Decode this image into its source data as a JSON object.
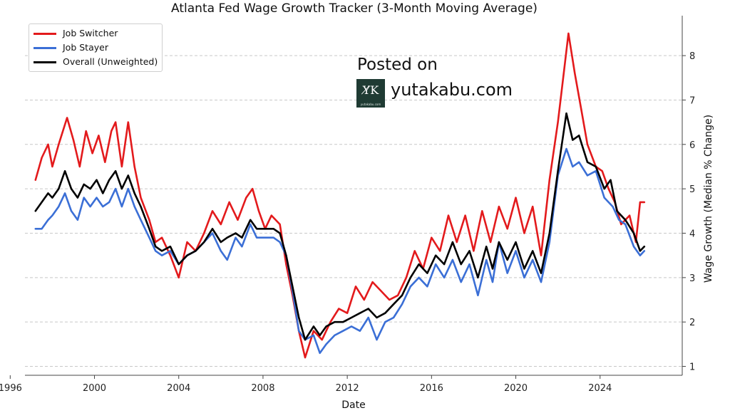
{
  "watermark": {
    "line1": "Posted on",
    "line2": "yutakabu.com",
    "logo_mark": "Y̸K",
    "logo_small": "yutakabu.com"
  },
  "colors": {
    "job_switcher": "#e31a1c",
    "job_stayer": "#3b6fd6",
    "overall": "#000000",
    "grid": "#c8c8c8"
  },
  "chart_data": {
    "type": "line",
    "title": "Atlanta Fed Wage Growth Tracker (3-Month Moving Average)",
    "xlabel": "Date",
    "ylabel": "Wage Growth (Median % Change)",
    "y_axis_side": "right",
    "xlim": [
      1996.7,
      2027.9
    ],
    "ylim": [
      0.8,
      8.9
    ],
    "x_ticks": [
      1996,
      2000,
      2004,
      2008,
      2012,
      2016,
      2020,
      2024
    ],
    "x_tick_labels": [
      "1996",
      "2000",
      "2004",
      "2008",
      "2012",
      "2016",
      "2020",
      "2024"
    ],
    "y_ticks": [
      1,
      2,
      3,
      4,
      5,
      6,
      7,
      8
    ],
    "y_tick_labels": [
      "1",
      "2",
      "3",
      "4",
      "5",
      "6",
      "7",
      "8"
    ],
    "grid": "horizontal dashed",
    "legend_position": "top-left",
    "series": [
      {
        "name": "Job Switcher",
        "color": "#e31a1c",
        "points": [
          [
            1997.2,
            5.2
          ],
          [
            1997.5,
            5.7
          ],
          [
            1997.8,
            6.0
          ],
          [
            1998.0,
            5.5
          ],
          [
            1998.3,
            6.0
          ],
          [
            1998.7,
            6.6
          ],
          [
            1999.0,
            6.1
          ],
          [
            1999.3,
            5.5
          ],
          [
            1999.6,
            6.3
          ],
          [
            1999.9,
            5.8
          ],
          [
            2000.2,
            6.2
          ],
          [
            2000.5,
            5.6
          ],
          [
            2000.8,
            6.3
          ],
          [
            2001.0,
            6.5
          ],
          [
            2001.3,
            5.5
          ],
          [
            2001.6,
            6.5
          ],
          [
            2001.9,
            5.5
          ],
          [
            2002.2,
            4.8
          ],
          [
            2002.6,
            4.3
          ],
          [
            2002.9,
            3.8
          ],
          [
            2003.2,
            3.9
          ],
          [
            2003.6,
            3.5
          ],
          [
            2004.0,
            3.0
          ],
          [
            2004.4,
            3.8
          ],
          [
            2004.8,
            3.6
          ],
          [
            2005.2,
            4.0
          ],
          [
            2005.6,
            4.5
          ],
          [
            2006.0,
            4.2
          ],
          [
            2006.4,
            4.7
          ],
          [
            2006.8,
            4.3
          ],
          [
            2007.2,
            4.8
          ],
          [
            2007.5,
            5.0
          ],
          [
            2007.8,
            4.5
          ],
          [
            2008.1,
            4.1
          ],
          [
            2008.4,
            4.4
          ],
          [
            2008.8,
            4.2
          ],
          [
            2009.1,
            3.3
          ],
          [
            2009.4,
            2.6
          ],
          [
            2009.7,
            1.8
          ],
          [
            2010.0,
            1.2
          ],
          [
            2010.4,
            1.8
          ],
          [
            2010.8,
            1.6
          ],
          [
            2011.2,
            2.0
          ],
          [
            2011.6,
            2.3
          ],
          [
            2012.0,
            2.2
          ],
          [
            2012.4,
            2.8
          ],
          [
            2012.8,
            2.5
          ],
          [
            2013.2,
            2.9
          ],
          [
            2013.6,
            2.7
          ],
          [
            2014.0,
            2.5
          ],
          [
            2014.4,
            2.6
          ],
          [
            2014.8,
            3.0
          ],
          [
            2015.2,
            3.6
          ],
          [
            2015.6,
            3.2
          ],
          [
            2016.0,
            3.9
          ],
          [
            2016.4,
            3.6
          ],
          [
            2016.8,
            4.4
          ],
          [
            2017.2,
            3.8
          ],
          [
            2017.6,
            4.4
          ],
          [
            2018.0,
            3.6
          ],
          [
            2018.4,
            4.5
          ],
          [
            2018.8,
            3.8
          ],
          [
            2019.2,
            4.6
          ],
          [
            2019.6,
            4.1
          ],
          [
            2020.0,
            4.8
          ],
          [
            2020.4,
            4.0
          ],
          [
            2020.8,
            4.6
          ],
          [
            2021.2,
            3.5
          ],
          [
            2021.6,
            5.2
          ],
          [
            2022.0,
            6.5
          ],
          [
            2022.3,
            7.7
          ],
          [
            2022.5,
            8.5
          ],
          [
            2022.8,
            7.6
          ],
          [
            2023.1,
            6.8
          ],
          [
            2023.4,
            6.0
          ],
          [
            2023.8,
            5.5
          ],
          [
            2024.1,
            5.4
          ],
          [
            2024.4,
            5.0
          ],
          [
            2024.7,
            4.7
          ],
          [
            2025.0,
            4.2
          ],
          [
            2025.4,
            4.4
          ],
          [
            2025.7,
            3.8
          ],
          [
            2025.9,
            4.7
          ],
          [
            2026.1,
            4.7
          ]
        ]
      },
      {
        "name": "Job Stayer",
        "color": "#3b6fd6",
        "points": [
          [
            1997.2,
            4.1
          ],
          [
            1997.5,
            4.1
          ],
          [
            1997.8,
            4.3
          ],
          [
            1998.0,
            4.4
          ],
          [
            1998.3,
            4.6
          ],
          [
            1998.6,
            4.9
          ],
          [
            1998.9,
            4.5
          ],
          [
            1999.2,
            4.3
          ],
          [
            1999.5,
            4.8
          ],
          [
            1999.8,
            4.6
          ],
          [
            2000.1,
            4.8
          ],
          [
            2000.4,
            4.6
          ],
          [
            2000.7,
            4.7
          ],
          [
            2001.0,
            5.0
          ],
          [
            2001.3,
            4.6
          ],
          [
            2001.6,
            5.0
          ],
          [
            2001.9,
            4.6
          ],
          [
            2002.2,
            4.3
          ],
          [
            2002.6,
            3.9
          ],
          [
            2002.9,
            3.6
          ],
          [
            2003.2,
            3.5
          ],
          [
            2003.6,
            3.6
          ],
          [
            2004.0,
            3.3
          ],
          [
            2004.4,
            3.5
          ],
          [
            2004.8,
            3.6
          ],
          [
            2005.2,
            3.8
          ],
          [
            2005.6,
            4.0
          ],
          [
            2006.0,
            3.6
          ],
          [
            2006.3,
            3.4
          ],
          [
            2006.7,
            3.9
          ],
          [
            2007.0,
            3.7
          ],
          [
            2007.4,
            4.2
          ],
          [
            2007.7,
            3.9
          ],
          [
            2008.1,
            3.9
          ],
          [
            2008.5,
            3.9
          ],
          [
            2008.8,
            3.8
          ],
          [
            2009.1,
            3.5
          ],
          [
            2009.4,
            2.7
          ],
          [
            2009.7,
            1.8
          ],
          [
            2010.0,
            1.6
          ],
          [
            2010.4,
            1.7
          ],
          [
            2010.7,
            1.3
          ],
          [
            2011.0,
            1.5
          ],
          [
            2011.4,
            1.7
          ],
          [
            2011.8,
            1.8
          ],
          [
            2012.2,
            1.9
          ],
          [
            2012.6,
            1.8
          ],
          [
            2013.0,
            2.1
          ],
          [
            2013.4,
            1.6
          ],
          [
            2013.8,
            2.0
          ],
          [
            2014.2,
            2.1
          ],
          [
            2014.6,
            2.4
          ],
          [
            2015.0,
            2.8
          ],
          [
            2015.4,
            3.0
          ],
          [
            2015.8,
            2.8
          ],
          [
            2016.2,
            3.3
          ],
          [
            2016.6,
            3.0
          ],
          [
            2017.0,
            3.4
          ],
          [
            2017.4,
            2.9
          ],
          [
            2017.8,
            3.3
          ],
          [
            2018.2,
            2.6
          ],
          [
            2018.6,
            3.4
          ],
          [
            2018.9,
            2.9
          ],
          [
            2019.2,
            3.8
          ],
          [
            2019.6,
            3.1
          ],
          [
            2020.0,
            3.6
          ],
          [
            2020.4,
            3.0
          ],
          [
            2020.8,
            3.4
          ],
          [
            2021.2,
            2.9
          ],
          [
            2021.6,
            3.8
          ],
          [
            2022.0,
            5.3
          ],
          [
            2022.4,
            5.9
          ],
          [
            2022.7,
            5.5
          ],
          [
            2023.0,
            5.6
          ],
          [
            2023.4,
            5.3
          ],
          [
            2023.8,
            5.4
          ],
          [
            2024.2,
            4.8
          ],
          [
            2024.6,
            4.6
          ],
          [
            2024.9,
            4.3
          ],
          [
            2025.2,
            4.2
          ],
          [
            2025.6,
            3.7
          ],
          [
            2025.9,
            3.5
          ],
          [
            2026.1,
            3.6
          ]
        ]
      },
      {
        "name": "Overall (Unweighted)",
        "color": "#000000",
        "points": [
          [
            1997.2,
            4.5
          ],
          [
            1997.5,
            4.7
          ],
          [
            1997.8,
            4.9
          ],
          [
            1998.0,
            4.8
          ],
          [
            1998.3,
            5.0
          ],
          [
            1998.6,
            5.4
          ],
          [
            1998.9,
            5.0
          ],
          [
            1999.2,
            4.8
          ],
          [
            1999.5,
            5.1
          ],
          [
            1999.8,
            5.0
          ],
          [
            2000.1,
            5.2
          ],
          [
            2000.4,
            4.9
          ],
          [
            2000.7,
            5.2
          ],
          [
            2001.0,
            5.4
          ],
          [
            2001.3,
            5.0
          ],
          [
            2001.6,
            5.3
          ],
          [
            2001.9,
            4.9
          ],
          [
            2002.2,
            4.6
          ],
          [
            2002.6,
            4.1
          ],
          [
            2002.9,
            3.7
          ],
          [
            2003.2,
            3.6
          ],
          [
            2003.6,
            3.7
          ],
          [
            2004.0,
            3.3
          ],
          [
            2004.4,
            3.5
          ],
          [
            2004.8,
            3.6
          ],
          [
            2005.2,
            3.8
          ],
          [
            2005.6,
            4.1
          ],
          [
            2006.0,
            3.8
          ],
          [
            2006.3,
            3.9
          ],
          [
            2006.7,
            4.0
          ],
          [
            2007.0,
            3.9
          ],
          [
            2007.4,
            4.3
          ],
          [
            2007.7,
            4.1
          ],
          [
            2008.1,
            4.1
          ],
          [
            2008.5,
            4.1
          ],
          [
            2008.8,
            4.0
          ],
          [
            2009.1,
            3.5
          ],
          [
            2009.4,
            2.8
          ],
          [
            2009.7,
            2.1
          ],
          [
            2010.0,
            1.6
          ],
          [
            2010.4,
            1.9
          ],
          [
            2010.7,
            1.7
          ],
          [
            2011.0,
            1.9
          ],
          [
            2011.4,
            2.0
          ],
          [
            2011.8,
            2.0
          ],
          [
            2012.2,
            2.1
          ],
          [
            2012.6,
            2.2
          ],
          [
            2013.0,
            2.3
          ],
          [
            2013.4,
            2.1
          ],
          [
            2013.8,
            2.2
          ],
          [
            2014.2,
            2.4
          ],
          [
            2014.6,
            2.6
          ],
          [
            2015.0,
            3.0
          ],
          [
            2015.4,
            3.3
          ],
          [
            2015.8,
            3.1
          ],
          [
            2016.2,
            3.5
          ],
          [
            2016.6,
            3.3
          ],
          [
            2017.0,
            3.8
          ],
          [
            2017.4,
            3.3
          ],
          [
            2017.8,
            3.6
          ],
          [
            2018.2,
            3.0
          ],
          [
            2018.6,
            3.7
          ],
          [
            2018.9,
            3.2
          ],
          [
            2019.2,
            3.8
          ],
          [
            2019.6,
            3.4
          ],
          [
            2020.0,
            3.8
          ],
          [
            2020.4,
            3.2
          ],
          [
            2020.8,
            3.6
          ],
          [
            2021.2,
            3.1
          ],
          [
            2021.6,
            4.0
          ],
          [
            2022.0,
            5.4
          ],
          [
            2022.4,
            6.7
          ],
          [
            2022.7,
            6.1
          ],
          [
            2023.0,
            6.2
          ],
          [
            2023.4,
            5.6
          ],
          [
            2023.8,
            5.5
          ],
          [
            2024.2,
            5.0
          ],
          [
            2024.5,
            5.2
          ],
          [
            2024.8,
            4.5
          ],
          [
            2025.2,
            4.3
          ],
          [
            2025.6,
            4.0
          ],
          [
            2025.9,
            3.6
          ],
          [
            2026.1,
            3.7
          ]
        ]
      }
    ]
  }
}
